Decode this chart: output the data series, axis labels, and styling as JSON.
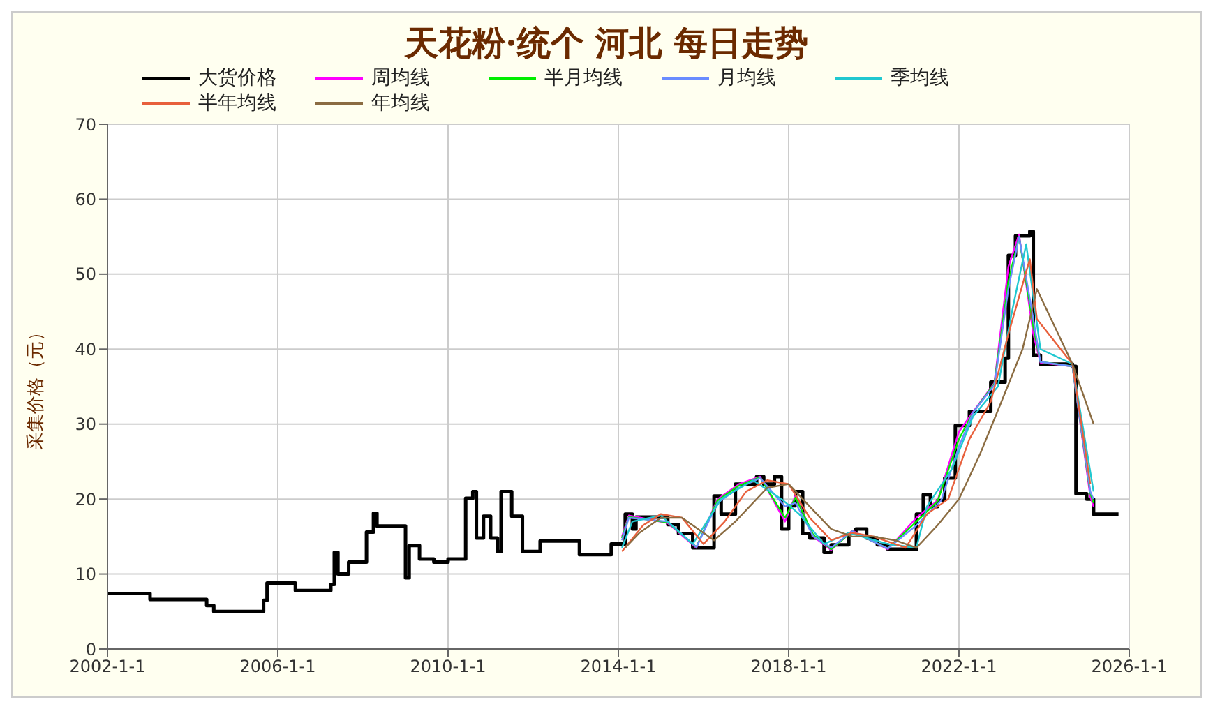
{
  "chart_data": {
    "type": "line",
    "title": "天花粉·统个 河北 每日走势",
    "ylabel": "采集价格（元）",
    "xlim": [
      "2002-01-01",
      "2026-01-01"
    ],
    "xticks": [
      {
        "value": "2002-01-01",
        "label": "2002-1-1"
      },
      {
        "value": "2006-01-01",
        "label": "2006-1-1"
      },
      {
        "value": "2010-01-01",
        "label": "2010-1-1"
      },
      {
        "value": "2014-01-01",
        "label": "2014-1-1"
      },
      {
        "value": "2018-01-01",
        "label": "2018-1-1"
      },
      {
        "value": "2022-01-01",
        "label": "2022-1-1"
      },
      {
        "value": "2026-01-01",
        "label": "2026-1-1"
      }
    ],
    "ylim": [
      0,
      70
    ],
    "yticks": [
      0,
      10,
      20,
      30,
      40,
      50,
      60,
      70
    ],
    "grid": true,
    "legend": "top",
    "marker": "none",
    "line_style": "solid",
    "series": [
      {
        "name": "大货价格",
        "type": "step",
        "color": "#000000",
        "x": [
          "2002-01",
          "2003-01",
          "2004-05",
          "2004-07",
          "2005-09",
          "2005-10",
          "2006-06",
          "2007-04",
          "2007-05",
          "2007-06",
          "2007-09",
          "2008-02",
          "2008-04",
          "2008-05",
          "2009-01",
          "2009-02",
          "2009-05",
          "2009-09",
          "2010-01",
          "2010-06",
          "2010-08",
          "2010-09",
          "2010-11",
          "2011-01",
          "2011-03",
          "2011-04",
          "2011-07",
          "2011-10",
          "2012-03",
          "2013-02",
          "2013-11",
          "2014-03",
          "2014-05",
          "2014-06",
          "2015-03",
          "2015-06",
          "2015-10",
          "2016-04",
          "2016-06",
          "2016-10",
          "2017-04",
          "2017-06",
          "2017-09",
          "2017-11",
          "2018-01",
          "2018-03",
          "2018-05",
          "2018-07",
          "2018-11",
          "2019-01",
          "2019-06",
          "2019-08",
          "2019-11",
          "2020-02",
          "2020-05",
          "2021-01",
          "2021-03",
          "2021-05",
          "2021-07",
          "2021-09",
          "2021-12",
          "2022-04",
          "2022-10",
          "2023-02",
          "2023-03",
          "2023-05",
          "2023-09",
          "2023-10",
          "2023-12",
          "2024-09",
          "2024-10",
          "2025-01",
          "2025-03",
          "2025-10"
        ],
        "values": [
          7.4,
          6.6,
          5.8,
          5.0,
          6.5,
          8.8,
          7.8,
          8.6,
          12.9,
          10,
          11.6,
          15.6,
          18.1,
          16.4,
          9.5,
          13.8,
          12,
          11.6,
          12,
          20.1,
          21,
          14.8,
          17.7,
          14.8,
          13,
          21,
          17.7,
          13,
          14.4,
          12.6,
          14,
          18,
          16,
          17.6,
          16.6,
          15.4,
          13.5,
          20.4,
          18,
          22,
          23,
          22,
          23,
          16,
          19.1,
          21,
          15.4,
          14.8,
          12.9,
          13.9,
          15.4,
          16,
          14.8,
          13.9,
          13.3,
          18,
          20.6,
          19,
          19.8,
          22.8,
          29.8,
          31.7,
          35.6,
          38.8,
          52.5,
          55.1,
          55.7,
          39.2,
          38,
          37.7,
          20.7,
          20,
          18,
          18
        ]
      },
      {
        "name": "周均线",
        "color": "#ff00ff",
        "x": [
          "2014-02",
          "2014-04",
          "2015-03",
          "2015-11",
          "2016-05",
          "2016-11",
          "2017-05",
          "2017-12",
          "2018-03",
          "2018-08",
          "2019-01",
          "2019-07",
          "2020-05",
          "2021-01",
          "2021-07",
          "2022-01",
          "2022-05",
          "2022-11",
          "2023-03",
          "2023-06",
          "2023-10",
          "2023-12",
          "2024-09",
          "2025-02",
          "2025-03"
        ],
        "values": [
          15,
          17.8,
          16.8,
          13.5,
          20,
          22,
          23,
          17,
          20.5,
          15,
          13.2,
          15.8,
          13.3,
          17.5,
          19.8,
          29,
          31.6,
          35.5,
          51,
          55.3,
          42,
          38.2,
          37.7,
          20.3,
          19
        ]
      },
      {
        "name": "半月均线",
        "color": "#00ee00",
        "x": [
          "2014-02",
          "2014-04",
          "2015-03",
          "2015-11",
          "2016-05",
          "2016-11",
          "2017-05",
          "2017-12",
          "2018-03",
          "2018-08",
          "2019-01",
          "2019-07",
          "2020-05",
          "2021-01",
          "2021-07",
          "2022-01",
          "2022-05",
          "2022-11",
          "2023-03",
          "2023-06",
          "2023-10",
          "2023-12",
          "2024-09",
          "2025-02",
          "2025-03"
        ],
        "values": [
          14.8,
          17.6,
          16.9,
          13.6,
          19.8,
          21.8,
          22.9,
          17.5,
          20.2,
          15.2,
          13.3,
          15.7,
          13.4,
          17,
          19.7,
          28,
          31.5,
          35.4,
          49,
          55,
          43,
          38.3,
          37.7,
          20.8,
          19.5
        ]
      },
      {
        "name": "月均线",
        "color": "#6a8cff",
        "x": [
          "2014-02",
          "2014-04",
          "2015-03",
          "2015-11",
          "2016-05",
          "2016-11",
          "2017-05",
          "2017-12",
          "2018-03",
          "2018-08",
          "2019-01",
          "2019-07",
          "2020-05",
          "2021-01",
          "2021-08",
          "2022-01",
          "2022-05",
          "2022-11",
          "2023-03",
          "2023-06",
          "2023-10",
          "2023-12",
          "2024-09",
          "2025-02",
          "2025-03"
        ],
        "values": [
          14.5,
          17.5,
          17,
          13.6,
          19.5,
          21.5,
          22.8,
          19,
          19.5,
          15,
          13.5,
          15.7,
          13.4,
          16.5,
          19.8,
          27,
          31.5,
          35.2,
          48,
          55,
          44,
          38.3,
          37.7,
          21,
          20
        ]
      },
      {
        "name": "季均线",
        "color": "#20c8d0",
        "x": [
          "2014-02",
          "2014-05",
          "2015-01",
          "2015-10",
          "2016-06",
          "2017-03",
          "2017-11",
          "2018-04",
          "2018-11",
          "2019-06",
          "2020-05",
          "2021-01",
          "2021-04",
          "2021-11",
          "2022-05",
          "2022-12",
          "2023-04",
          "2023-08",
          "2023-12",
          "2024-09",
          "2025-03"
        ],
        "values": [
          13.5,
          17,
          17.8,
          14,
          20,
          22.5,
          20,
          18,
          14,
          15.5,
          14,
          13.5,
          19,
          24,
          31,
          35,
          45,
          54,
          40,
          38,
          21
        ]
      },
      {
        "name": "半年均线",
        "color": "#e8603c",
        "x": [
          "2014-02",
          "2014-08",
          "2015-01",
          "2015-07",
          "2016-01",
          "2016-07",
          "2017-01",
          "2017-07",
          "2018-01",
          "2018-07",
          "2019-01",
          "2019-07",
          "2020-01",
          "2020-10",
          "2021-04",
          "2021-10",
          "2022-04",
          "2022-10",
          "2023-03",
          "2023-09",
          "2023-11",
          "2024-09",
          "2025-02"
        ],
        "values": [
          13,
          16.5,
          18,
          17.5,
          14,
          17,
          21,
          22.5,
          22,
          17.5,
          14.5,
          15.5,
          15,
          13.5,
          18,
          20,
          28,
          33,
          42,
          52,
          44,
          38,
          22
        ]
      },
      {
        "name": "年均线",
        "color": "#8b6c42",
        "x": [
          "2014-03",
          "2014-07",
          "2015-01",
          "2015-07",
          "2016-01",
          "2016-04",
          "2016-10",
          "2017-07",
          "2018-01",
          "2018-07",
          "2019-01",
          "2019-07",
          "2020-01",
          "2020-07",
          "2021-01",
          "2021-07",
          "2022-01",
          "2022-07",
          "2023-01",
          "2023-07",
          "2023-11",
          "2024-09",
          "2025-03"
        ],
        "values": [
          13.5,
          15.5,
          17.5,
          17.5,
          15.5,
          14.5,
          17,
          21.5,
          22,
          19,
          16,
          15,
          15,
          14.5,
          13.5,
          16.5,
          20,
          26,
          33,
          40,
          48,
          38,
          30
        ]
      }
    ]
  }
}
